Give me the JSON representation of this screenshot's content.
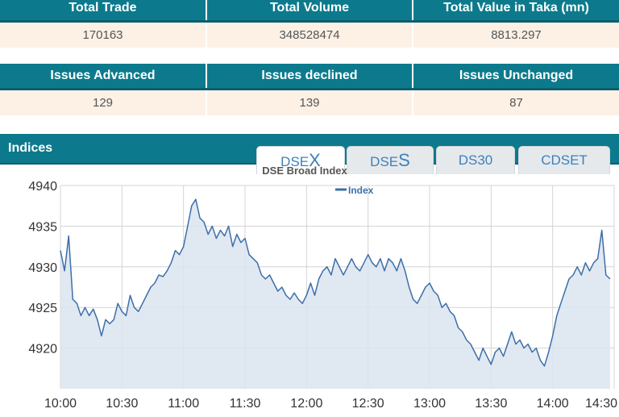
{
  "summary": {
    "headers": [
      "Total Trade",
      "Total Volume",
      "Total Value in Taka (mn)"
    ],
    "values": [
      "170163",
      "348528474",
      "8813.297"
    ]
  },
  "issues": {
    "headers": [
      "Issues Advanced",
      "Issues declined",
      "Issues Unchanged"
    ],
    "values": [
      "129",
      "139",
      "87"
    ]
  },
  "indices": {
    "title": "Indices",
    "tabs": [
      {
        "prefix": "DSE",
        "suffix": "X",
        "active": true
      },
      {
        "prefix": "DSE",
        "suffix": "S",
        "active": false
      },
      {
        "prefix": "DS30",
        "suffix": "",
        "active": false
      },
      {
        "prefix": "CDSET",
        "suffix": "",
        "active": false
      }
    ]
  },
  "colors": {
    "header": "#0c7a8c",
    "line": "#3d6fa8",
    "fill": "#dbe4f0"
  },
  "chart_data": {
    "type": "area",
    "title": "DSE Broad Index",
    "legend": [
      "Index"
    ],
    "legend_position": "top-center",
    "grid": true,
    "x_ticks": [
      "10:00",
      "10:30",
      "11:00",
      "11:30",
      "12:00",
      "12:30",
      "13:00",
      "13:30",
      "14:00",
      "14:30"
    ],
    "xlim": [
      "10:00",
      "14:30"
    ],
    "y_ticks": [
      4920,
      4925,
      4930,
      4935,
      4940
    ],
    "ylim": [
      4915,
      4940
    ],
    "series": [
      {
        "name": "Index",
        "points": [
          [
            "10:00",
            4932
          ],
          [
            "10:02",
            4929.5
          ],
          [
            "10:04",
            4933.8
          ],
          [
            "10:06",
            4926
          ],
          [
            "10:08",
            4925.5
          ],
          [
            "10:10",
            4924
          ],
          [
            "10:12",
            4925
          ],
          [
            "10:14",
            4924
          ],
          [
            "10:16",
            4924.8
          ],
          [
            "10:18",
            4923.5
          ],
          [
            "10:20",
            4921.5
          ],
          [
            "10:22",
            4923.5
          ],
          [
            "10:24",
            4923
          ],
          [
            "10:26",
            4923.5
          ],
          [
            "10:28",
            4925.5
          ],
          [
            "10:30",
            4924.5
          ],
          [
            "10:32",
            4924
          ],
          [
            "10:34",
            4926.5
          ],
          [
            "10:36",
            4925
          ],
          [
            "10:38",
            4924.5
          ],
          [
            "10:40",
            4925.5
          ],
          [
            "10:42",
            4926.5
          ],
          [
            "10:44",
            4927.5
          ],
          [
            "10:46",
            4928
          ],
          [
            "10:48",
            4929
          ],
          [
            "10:50",
            4928.8
          ],
          [
            "10:52",
            4929.5
          ],
          [
            "10:54",
            4930.5
          ],
          [
            "10:56",
            4932
          ],
          [
            "10:58",
            4931.5
          ],
          [
            "11:00",
            4932.5
          ],
          [
            "11:02",
            4935
          ],
          [
            "11:04",
            4937.5
          ],
          [
            "11:06",
            4938.3
          ],
          [
            "11:08",
            4936
          ],
          [
            "11:10",
            4935.5
          ],
          [
            "11:12",
            4934
          ],
          [
            "11:14",
            4935
          ],
          [
            "11:16",
            4933.5
          ],
          [
            "11:18",
            4934.5
          ],
          [
            "11:20",
            4933.8
          ],
          [
            "11:22",
            4935
          ],
          [
            "11:24",
            4932.5
          ],
          [
            "11:26",
            4934
          ],
          [
            "11:28",
            4933
          ],
          [
            "11:30",
            4933.5
          ],
          [
            "11:32",
            4931.5
          ],
          [
            "11:34",
            4931
          ],
          [
            "11:36",
            4930.5
          ],
          [
            "11:38",
            4929
          ],
          [
            "11:40",
            4928.5
          ],
          [
            "11:42",
            4929
          ],
          [
            "11:44",
            4928
          ],
          [
            "11:46",
            4927
          ],
          [
            "11:48",
            4927.5
          ],
          [
            "11:50",
            4926.5
          ],
          [
            "11:52",
            4926
          ],
          [
            "11:54",
            4926.8
          ],
          [
            "11:56",
            4926
          ],
          [
            "11:58",
            4925.5
          ],
          [
            "12:00",
            4926.5
          ],
          [
            "12:02",
            4928
          ],
          [
            "12:04",
            4926.5
          ],
          [
            "12:06",
            4928.5
          ],
          [
            "12:08",
            4929.5
          ],
          [
            "12:10",
            4930
          ],
          [
            "12:12",
            4929
          ],
          [
            "12:14",
            4931
          ],
          [
            "12:16",
            4930
          ],
          [
            "12:18",
            4929
          ],
          [
            "12:20",
            4930
          ],
          [
            "12:22",
            4931
          ],
          [
            "12:24",
            4930
          ],
          [
            "12:26",
            4929.5
          ],
          [
            "12:28",
            4930.5
          ],
          [
            "12:30",
            4931.5
          ],
          [
            "12:32",
            4930.5
          ],
          [
            "12:34",
            4930
          ],
          [
            "12:36",
            4931
          ],
          [
            "12:38",
            4929.5
          ],
          [
            "12:40",
            4931
          ],
          [
            "12:42",
            4930.5
          ],
          [
            "12:44",
            4929.5
          ],
          [
            "12:46",
            4931
          ],
          [
            "12:48",
            4929.5
          ],
          [
            "12:50",
            4927.5
          ],
          [
            "12:52",
            4926
          ],
          [
            "12:54",
            4925.5
          ],
          [
            "12:56",
            4926.5
          ],
          [
            "12:58",
            4927.5
          ],
          [
            "13:00",
            4928
          ],
          [
            "13:02",
            4927
          ],
          [
            "13:04",
            4926.5
          ],
          [
            "13:06",
            4925
          ],
          [
            "13:08",
            4925.5
          ],
          [
            "13:10",
            4924.5
          ],
          [
            "13:12",
            4924
          ],
          [
            "13:14",
            4922.5
          ],
          [
            "13:16",
            4922
          ],
          [
            "13:18",
            4921
          ],
          [
            "13:20",
            4920.5
          ],
          [
            "13:22",
            4919.5
          ],
          [
            "13:24",
            4918.5
          ],
          [
            "13:26",
            4920
          ],
          [
            "13:28",
            4919
          ],
          [
            "13:30",
            4918
          ],
          [
            "13:32",
            4919.5
          ],
          [
            "13:34",
            4920
          ],
          [
            "13:36",
            4919
          ],
          [
            "13:38",
            4920.5
          ],
          [
            "13:40",
            4922
          ],
          [
            "13:42",
            4920.5
          ],
          [
            "13:44",
            4921
          ],
          [
            "13:46",
            4920
          ],
          [
            "13:48",
            4920.5
          ],
          [
            "13:50",
            4919.5
          ],
          [
            "13:52",
            4920
          ],
          [
            "13:54",
            4918.5
          ],
          [
            "13:56",
            4917.8
          ],
          [
            "13:58",
            4919.5
          ],
          [
            "14:00",
            4921.5
          ],
          [
            "14:02",
            4924
          ],
          [
            "14:04",
            4925.5
          ],
          [
            "14:06",
            4927
          ],
          [
            "14:08",
            4928.5
          ],
          [
            "14:10",
            4929
          ],
          [
            "14:12",
            4930
          ],
          [
            "14:14",
            4929
          ],
          [
            "14:16",
            4930.5
          ],
          [
            "14:18",
            4929.5
          ],
          [
            "14:20",
            4930.5
          ],
          [
            "14:22",
            4931
          ],
          [
            "14:24",
            4934.5
          ],
          [
            "14:26",
            4929
          ],
          [
            "14:28",
            4928.5
          ]
        ]
      }
    ]
  }
}
